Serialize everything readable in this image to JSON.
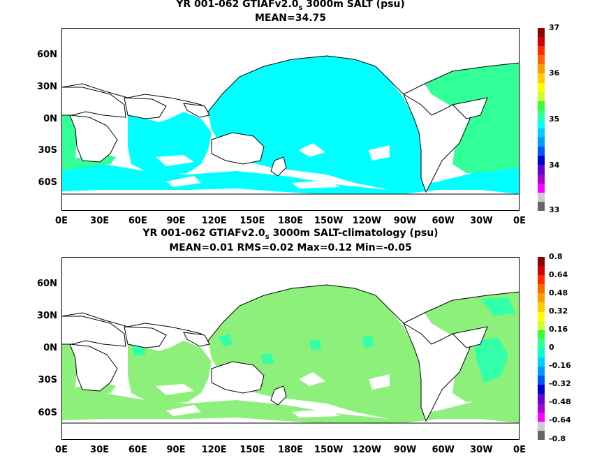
{
  "panel1": {
    "title_main": "YR 001-062 GTIAFv2.0",
    "title_sub": "s",
    "title_rest": " 3000m SALT (psu)",
    "stats": "MEAN=34.75",
    "colorbar_labels": [
      "37",
      "36",
      "35",
      "34",
      "33"
    ]
  },
  "panel2": {
    "title_main": "YR 001-062 GTIAFv2.0",
    "title_sub": "s",
    "title_rest": " 3000m SALT-climatology (psu)",
    "stats": "MEAN=0.01   RMS=0.02   Max=0.12   Min=-0.05",
    "colorbar_labels": [
      "0.8",
      "0.64",
      "0.48",
      "0.32",
      "0.16",
      "0",
      "-0.16",
      "-0.32",
      "-0.48",
      "-0.64",
      "-0.8"
    ]
  },
  "axes": {
    "lat_labels": [
      "60N",
      "30N",
      "0N",
      "30S",
      "60S"
    ],
    "lon_labels": [
      "0E",
      "30E",
      "60E",
      "90E",
      "120E",
      "150E",
      "180E",
      "150W",
      "120W",
      "90W",
      "60W",
      "30W",
      "0E"
    ]
  },
  "colors": {
    "panel1_ocean": "#00ffff",
    "panel1_atlantic": "#33ff99",
    "panel2_ocean": "#8cf07a",
    "panel2_patch": "#33ffaa",
    "land": "#ffffff",
    "coast": "#000000",
    "colorbar1": [
      "#8b0000",
      "#cc0000",
      "#ff2a00",
      "#ff6600",
      "#ff9900",
      "#ffcc00",
      "#ffff00",
      "#ccff33",
      "#33ff33",
      "#33ff99",
      "#00ffff",
      "#00ccff",
      "#0099ff",
      "#0055ff",
      "#0000cc",
      "#6600cc",
      "#aa00cc",
      "#ff00ff",
      "#cccccc",
      "#666666"
    ],
    "colorbar2": [
      "#8b0000",
      "#cc0000",
      "#ff2a00",
      "#ff6600",
      "#ff9900",
      "#ffcc00",
      "#ffff00",
      "#ccff33",
      "#33ff33",
      "#33ff99",
      "#00ffcc",
      "#00ccff",
      "#0099ff",
      "#0055ff",
      "#0000cc",
      "#6600cc",
      "#aa00cc",
      "#ff00ff",
      "#cccccc",
      "#666666"
    ]
  }
}
